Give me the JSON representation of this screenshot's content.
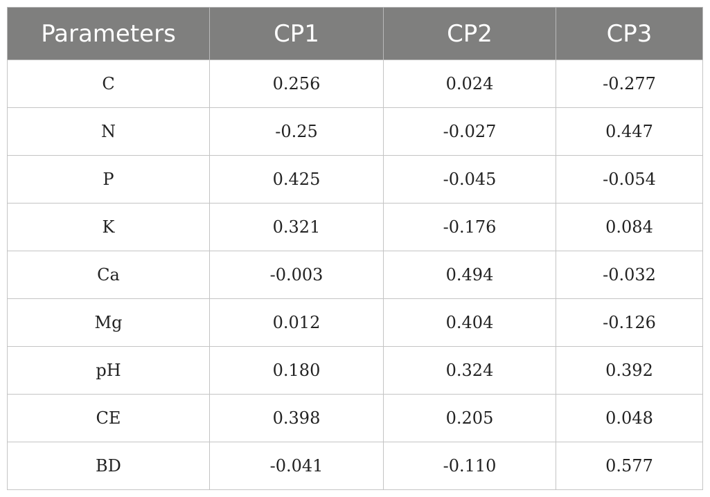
{
  "table": {
    "headers": [
      "Parameters",
      "CP1",
      "CP2",
      "CP3"
    ],
    "rows": [
      [
        "C",
        "0.256",
        "0.024",
        "-0.277"
      ],
      [
        "N",
        "-0.25",
        "-0.027",
        "0.447"
      ],
      [
        "P",
        "0.425",
        "-0.045",
        "-0.054"
      ],
      [
        "K",
        "0.321",
        "-0.176",
        "0.084"
      ],
      [
        "Ca",
        "-0.003",
        "0.494",
        "-0.032"
      ],
      [
        "Mg",
        "0.012",
        "0.404",
        "-0.126"
      ],
      [
        "pH",
        "0.180",
        "0.324",
        "0.392"
      ],
      [
        "CE",
        "0.398",
        "0.205",
        "0.048"
      ],
      [
        "BD",
        "-0.041",
        "-0.110",
        "0.577"
      ]
    ]
  },
  "colors": {
    "header_background": "#7f7f7e",
    "header_text": "#ffffff",
    "border": "#c4c4c4"
  }
}
